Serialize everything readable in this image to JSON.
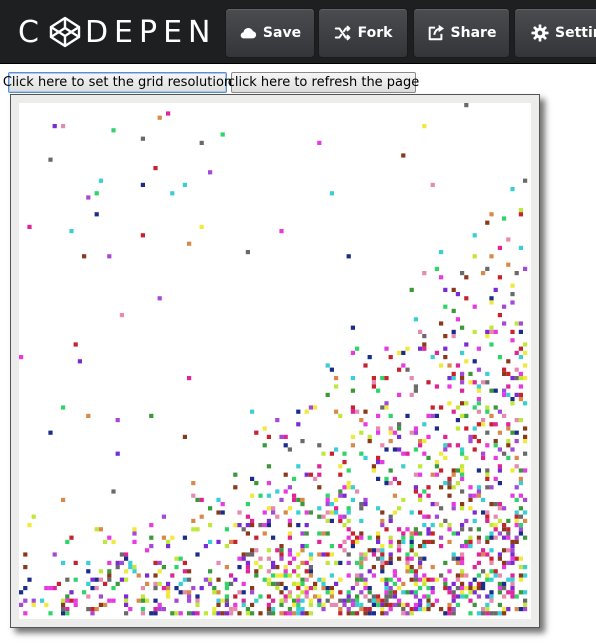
{
  "header": {
    "logo_text_left": "C",
    "logo_text_right": "DEPEN",
    "buttons": [
      {
        "label": "Save",
        "icon": "cloud-icon"
      },
      {
        "label": "Fork",
        "icon": "fork-icon"
      },
      {
        "label": "Share",
        "icon": "share-icon"
      },
      {
        "label": "Settings",
        "icon": "gear-icon"
      }
    ]
  },
  "controls": {
    "set_grid_label": "Click here to set the grid resolution",
    "refresh_label": "click here to refresh the page"
  },
  "colors": {
    "topbar": "#1e1f21",
    "pixel_palette": [
      "#e0249a",
      "#7b2bd4",
      "#2fd46a",
      "#3acfd6",
      "#1a2d8a",
      "#c0e83a",
      "#8a3a1a",
      "#e68ab0",
      "#f1e93b",
      "#3a9a3a",
      "#c7222e",
      "#d98a4a",
      "#a54ad6",
      "#6a6a6a",
      "#e83ae0"
    ]
  }
}
